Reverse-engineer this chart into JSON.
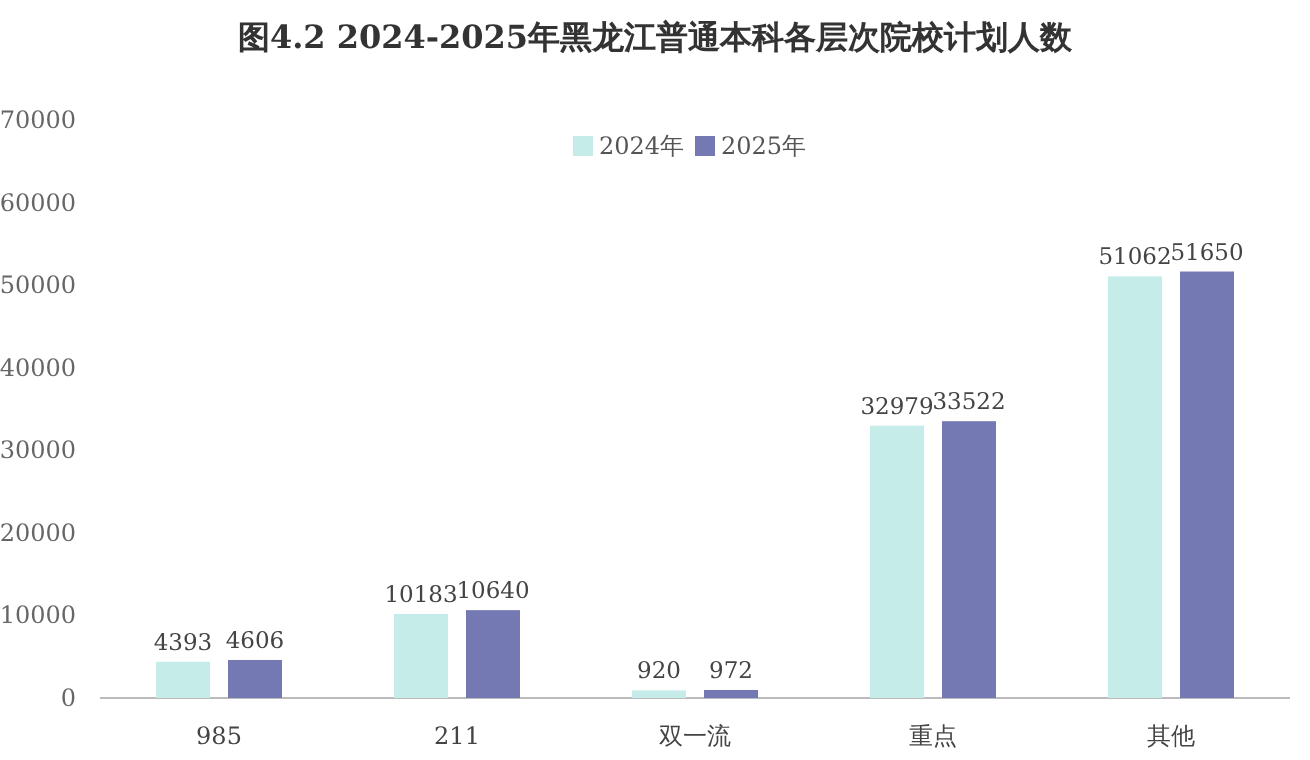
{
  "chart_data": {
    "type": "bar",
    "title": "图4.2 2024-2025年黑龙江普通本科各层次院校计划人数",
    "categories": [
      "985",
      "211",
      "双一流",
      "重点",
      "其他"
    ],
    "series": [
      {
        "name": "2024年",
        "color": "#c6ecea",
        "values": [
          4393,
          10183,
          920,
          32979,
          51062
        ]
      },
      {
        "name": "2025年",
        "color": "#7479b3",
        "values": [
          4606,
          10640,
          972,
          33522,
          51650
        ]
      }
    ],
    "ylim": [
      0,
      70000
    ],
    "yticks": [
      0,
      10000,
      20000,
      30000,
      40000,
      50000,
      60000,
      70000
    ],
    "data_labels": true,
    "legend": "top"
  }
}
